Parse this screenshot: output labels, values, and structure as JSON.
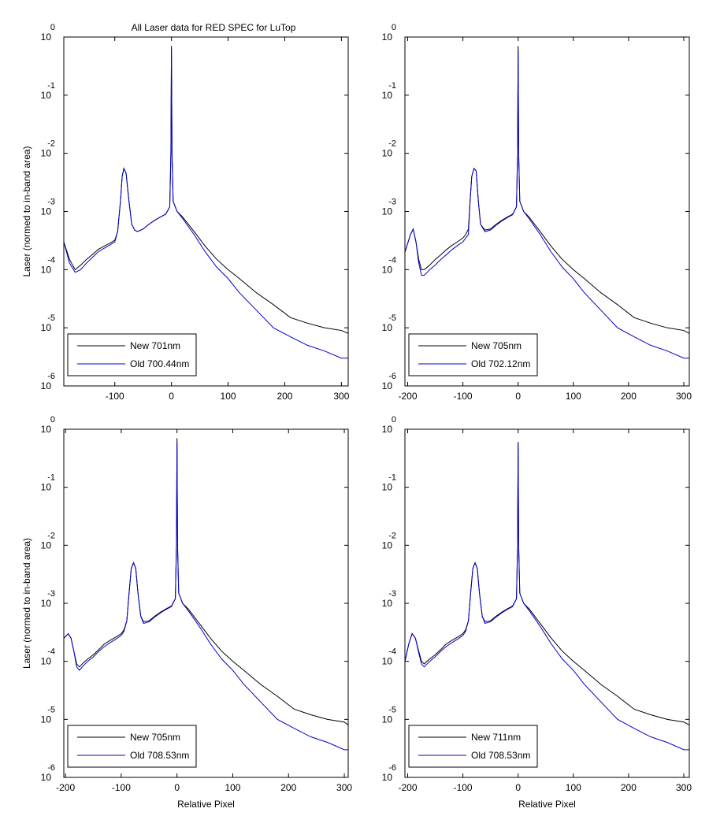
{
  "figure_title": "All Laser data for RED SPEC for LuTop",
  "ylabel": "Laser (normed to in-band area)",
  "xlabel": "Relative Pixel",
  "log_base_label": "10",
  "colors": {
    "new": "#000000",
    "old": "#0000cc",
    "axes": "#000000"
  },
  "chart_data": [
    {
      "type": "line",
      "title": "All Laser data for RED SPEC for LuTop",
      "xlim": [
        -190,
        312
      ],
      "ylim_exp": [
        -6,
        0
      ],
      "xticks": [
        -100,
        0,
        100,
        200,
        300
      ],
      "xtick_labels": [
        "-100",
        "0",
        "100",
        "200",
        "300"
      ],
      "ytick_exps": [
        0,
        -1,
        -2,
        -3,
        -4,
        -5,
        -6
      ],
      "ytick_exp_labels": [
        "0",
        "-1",
        "-2",
        "-3",
        "-4",
        "-5",
        "-6"
      ],
      "ylabel": "Laser (normed to in-band area)",
      "xlabel": "",
      "yscale": "log",
      "legend_position": "bottom-left",
      "series": [
        {
          "name": "New 701nm",
          "color": "#000000",
          "x": [
            -190,
            -180,
            -170,
            -160,
            -150,
            -140,
            -130,
            -120,
            -110,
            -100,
            -95,
            -90,
            -87,
            -84,
            -80,
            -75,
            -70,
            -65,
            -60,
            -50,
            -40,
            -30,
            -20,
            -10,
            -3,
            -1,
            0,
            1,
            3,
            10,
            20,
            40,
            60,
            80,
            100,
            120,
            150,
            180,
            210,
            240,
            270,
            300,
            312
          ],
          "y": [
            0.0003,
            0.00015,
            0.0001,
            0.00012,
            0.00015,
            0.00018,
            0.00022,
            0.00025,
            0.00028,
            0.00032,
            0.00045,
            0.0015,
            0.004,
            0.0055,
            0.0045,
            0.0015,
            0.0006,
            0.00048,
            0.00045,
            0.0005,
            0.0006,
            0.0007,
            0.0008,
            0.0009,
            0.0012,
            0.01,
            0.7,
            0.01,
            0.0015,
            0.001,
            0.0008,
            0.00045,
            0.00025,
            0.00015,
            0.0001,
            7e-05,
            4e-05,
            2.5e-05,
            1.5e-05,
            1.2e-05,
            1e-05,
            9e-06,
            8e-06
          ]
        },
        {
          "name": "Old 700.44nm",
          "color": "#0000cc",
          "x": [
            -190,
            -180,
            -170,
            -160,
            -150,
            -140,
            -130,
            -120,
            -110,
            -100,
            -95,
            -90,
            -87,
            -84,
            -80,
            -75,
            -70,
            -65,
            -60,
            -50,
            -40,
            -30,
            -20,
            -10,
            -3,
            -1,
            0,
            1,
            3,
            10,
            20,
            40,
            60,
            80,
            100,
            120,
            150,
            180,
            210,
            240,
            270,
            300,
            312
          ],
          "y": [
            0.0003,
            0.00013,
            9e-05,
            0.0001,
            0.00013,
            0.00016,
            0.0002,
            0.00023,
            0.00026,
            0.0003,
            0.00045,
            0.0015,
            0.004,
            0.0055,
            0.0045,
            0.0015,
            0.0006,
            0.00048,
            0.00045,
            0.0005,
            0.0006,
            0.0007,
            0.0008,
            0.0009,
            0.0012,
            0.01,
            0.65,
            0.01,
            0.0015,
            0.001,
            0.00075,
            0.0004,
            0.0002,
            0.00011,
            7e-05,
            4e-05,
            2e-05,
            1e-05,
            7e-06,
            5e-06,
            4e-06,
            3e-06,
            3e-06
          ]
        }
      ]
    },
    {
      "type": "line",
      "title": "",
      "xlim": [
        -205,
        310
      ],
      "ylim_exp": [
        -6,
        0
      ],
      "xticks": [
        -200,
        -100,
        0,
        100,
        200,
        300
      ],
      "xtick_labels": [
        "-200",
        "-100",
        "0",
        "100",
        "200",
        "300"
      ],
      "ytick_exps": [
        0,
        -1,
        -2,
        -3,
        -4,
        -5,
        -6
      ],
      "ytick_exp_labels": [
        "0",
        "-1",
        "-2",
        "-3",
        "-4",
        "-5",
        "-6"
      ],
      "ylabel": "",
      "xlabel": "",
      "yscale": "log",
      "legend_position": "bottom-left",
      "series": [
        {
          "name": "New 705nm",
          "color": "#000000",
          "x": [
            -205,
            -195,
            -190,
            -185,
            -180,
            -175,
            -170,
            -160,
            -150,
            -140,
            -130,
            -120,
            -110,
            -100,
            -95,
            -90,
            -87,
            -84,
            -80,
            -76,
            -72,
            -68,
            -60,
            -50,
            -40,
            -30,
            -20,
            -10,
            -3,
            -1,
            0,
            1,
            3,
            10,
            20,
            40,
            60,
            80,
            100,
            120,
            150,
            180,
            210,
            240,
            270,
            300,
            310
          ],
          "y": [
            0.0002,
            0.0004,
            0.0005,
            0.0003,
            0.00015,
            0.0001,
            0.0001,
            0.00012,
            0.00015,
            0.00018,
            0.00022,
            0.00026,
            0.0003,
            0.00035,
            0.0004,
            0.0005,
            0.0015,
            0.004,
            0.0055,
            0.005,
            0.0015,
            0.0006,
            0.00048,
            0.0005,
            0.0006,
            0.0007,
            0.0008,
            0.0009,
            0.0012,
            0.01,
            0.7,
            0.01,
            0.0015,
            0.001,
            0.0008,
            0.00045,
            0.00025,
            0.00015,
            0.0001,
            7e-05,
            4e-05,
            2.5e-05,
            1.5e-05,
            1.2e-05,
            1e-05,
            9e-06,
            8e-06
          ]
        },
        {
          "name": "Old 702.12nm",
          "color": "#0000cc",
          "x": [
            -205,
            -195,
            -190,
            -185,
            -180,
            -175,
            -170,
            -160,
            -150,
            -140,
            -130,
            -120,
            -110,
            -100,
            -95,
            -90,
            -87,
            -84,
            -80,
            -76,
            -72,
            -68,
            -60,
            -50,
            -40,
            -30,
            -20,
            -10,
            -3,
            -1,
            0,
            1,
            3,
            10,
            20,
            40,
            60,
            80,
            100,
            120,
            150,
            180,
            210,
            240,
            270,
            300,
            310
          ],
          "y": [
            0.0002,
            0.0004,
            0.0005,
            0.0003,
            0.00013,
            8e-05,
            8e-05,
            0.0001,
            0.00012,
            0.00015,
            0.00018,
            0.00022,
            0.00026,
            0.0003,
            0.00035,
            0.0004,
            0.0015,
            0.004,
            0.0055,
            0.005,
            0.0015,
            0.0006,
            0.00045,
            0.00048,
            0.00058,
            0.00068,
            0.00078,
            0.00088,
            0.0012,
            0.01,
            0.6,
            0.01,
            0.0015,
            0.001,
            0.00075,
            0.0004,
            0.0002,
            0.00011,
            7e-05,
            4e-05,
            2e-05,
            1e-05,
            7e-06,
            5e-06,
            4e-06,
            3e-06,
            3e-06
          ]
        }
      ]
    },
    {
      "type": "line",
      "title": "",
      "xlim": [
        -203,
        307
      ],
      "ylim_exp": [
        -6,
        0
      ],
      "xticks": [
        -200,
        -100,
        0,
        100,
        200,
        300
      ],
      "xtick_labels": [
        "-200",
        "-100",
        "0",
        "100",
        "200",
        "300"
      ],
      "ytick_exps": [
        0,
        -1,
        -2,
        -3,
        -4,
        -5,
        -6
      ],
      "ytick_exp_labels": [
        "0",
        "-1",
        "-2",
        "-3",
        "-4",
        "-5",
        "-6"
      ],
      "ylabel": "Laser (normed to in-band area)",
      "xlabel": "Relative Pixel",
      "yscale": "log",
      "legend_position": "bottom-left",
      "series": [
        {
          "name": "New 705nm",
          "color": "#000000",
          "x": [
            -203,
            -195,
            -190,
            -185,
            -180,
            -175,
            -170,
            -165,
            -160,
            -150,
            -140,
            -130,
            -120,
            -110,
            -100,
            -95,
            -90,
            -86,
            -82,
            -78,
            -74,
            -70,
            -65,
            -60,
            -50,
            -40,
            -30,
            -20,
            -10,
            -3,
            -1,
            0,
            1,
            3,
            10,
            20,
            40,
            60,
            80,
            100,
            120,
            150,
            180,
            210,
            240,
            270,
            300,
            307
          ],
          "y": [
            0.00025,
            0.0003,
            0.00025,
            0.00015,
            9e-05,
            8e-05,
            9e-05,
            0.0001,
            0.00011,
            0.00013,
            0.00016,
            0.0002,
            0.00023,
            0.00026,
            0.0003,
            0.00035,
            0.0005,
            0.0015,
            0.004,
            0.005,
            0.004,
            0.0015,
            0.0006,
            0.00048,
            0.0005,
            0.0006,
            0.0007,
            0.0008,
            0.0009,
            0.0012,
            0.01,
            0.7,
            0.01,
            0.0015,
            0.001,
            0.0008,
            0.00045,
            0.00025,
            0.00015,
            0.0001,
            7e-05,
            4e-05,
            2.5e-05,
            1.5e-05,
            1.2e-05,
            1e-05,
            9e-06,
            8e-06
          ]
        },
        {
          "name": "Old 708.53nm",
          "color": "#0000cc",
          "x": [
            -203,
            -195,
            -190,
            -185,
            -180,
            -175,
            -170,
            -165,
            -160,
            -150,
            -140,
            -130,
            -120,
            -110,
            -100,
            -95,
            -90,
            -86,
            -82,
            -78,
            -74,
            -70,
            -65,
            -60,
            -50,
            -40,
            -30,
            -20,
            -10,
            -3,
            -1,
            0,
            1,
            3,
            10,
            20,
            40,
            60,
            80,
            100,
            120,
            150,
            180,
            210,
            240,
            270,
            300,
            307
          ],
          "y": [
            0.00025,
            0.0003,
            0.00025,
            0.00015,
            8e-05,
            7e-05,
            8e-05,
            9e-05,
            0.0001,
            0.00012,
            0.00015,
            0.00018,
            0.00021,
            0.00024,
            0.00028,
            0.00033,
            0.0005,
            0.0015,
            0.004,
            0.005,
            0.004,
            0.0015,
            0.0006,
            0.00045,
            0.00048,
            0.00058,
            0.00068,
            0.00078,
            0.00088,
            0.0012,
            0.01,
            0.6,
            0.01,
            0.0015,
            0.001,
            0.00075,
            0.0004,
            0.0002,
            0.00011,
            7e-05,
            4e-05,
            2e-05,
            1e-05,
            7e-06,
            5e-06,
            4e-06,
            3e-06,
            3e-06
          ]
        }
      ]
    },
    {
      "type": "line",
      "title": "",
      "xlim": [
        -205,
        310
      ],
      "ylim_exp": [
        -6,
        0
      ],
      "xticks": [
        -200,
        -100,
        0,
        100,
        200,
        300
      ],
      "xtick_labels": [
        "-200",
        "-100",
        "0",
        "100",
        "200",
        "300"
      ],
      "ytick_exps": [
        0,
        -1,
        -2,
        -3,
        -4,
        -5,
        -6
      ],
      "ytick_exp_labels": [
        "0",
        "-1",
        "-2",
        "-3",
        "-4",
        "-5",
        "-6"
      ],
      "ylabel": "",
      "xlabel": "Relative Pixel",
      "yscale": "log",
      "legend_position": "bottom-left",
      "series": [
        {
          "name": "New 711nm",
          "color": "#000000",
          "x": [
            -205,
            -198,
            -192,
            -186,
            -180,
            -175,
            -170,
            -165,
            -160,
            -150,
            -140,
            -130,
            -120,
            -110,
            -100,
            -95,
            -90,
            -86,
            -82,
            -78,
            -74,
            -70,
            -65,
            -60,
            -50,
            -40,
            -30,
            -20,
            -10,
            -3,
            -1,
            0,
            1,
            3,
            10,
            20,
            40,
            60,
            80,
            100,
            120,
            150,
            180,
            210,
            240,
            270,
            300,
            310
          ],
          "y": [
            0.0001,
            0.0002,
            0.0003,
            0.00025,
            0.00015,
            0.0001,
            9e-05,
            0.0001,
            0.00011,
            0.00013,
            0.00016,
            0.0002,
            0.00023,
            0.00026,
            0.0003,
            0.00035,
            0.0005,
            0.0015,
            0.004,
            0.005,
            0.004,
            0.0015,
            0.0006,
            0.00048,
            0.0005,
            0.0006,
            0.0007,
            0.0008,
            0.0009,
            0.0012,
            0.01,
            0.6,
            0.01,
            0.0015,
            0.001,
            0.0008,
            0.00045,
            0.00025,
            0.00015,
            0.0001,
            7e-05,
            4e-05,
            2.5e-05,
            1.5e-05,
            1.2e-05,
            1e-05,
            9e-06,
            8e-06
          ]
        },
        {
          "name": "Old 708.53nm",
          "color": "#0000cc",
          "x": [
            -205,
            -198,
            -192,
            -186,
            -180,
            -175,
            -170,
            -165,
            -160,
            -150,
            -140,
            -130,
            -120,
            -110,
            -100,
            -95,
            -90,
            -86,
            -82,
            -78,
            -74,
            -70,
            -65,
            -60,
            -50,
            -40,
            -30,
            -20,
            -10,
            -3,
            -1,
            0,
            1,
            3,
            10,
            20,
            40,
            60,
            80,
            100,
            120,
            150,
            180,
            210,
            240,
            270,
            300,
            310
          ],
          "y": [
            0.0001,
            0.0002,
            0.0003,
            0.00025,
            0.00014,
            9e-05,
            8e-05,
            9e-05,
            0.0001,
            0.00012,
            0.00015,
            0.00018,
            0.00021,
            0.00024,
            0.00028,
            0.00033,
            0.0005,
            0.0015,
            0.004,
            0.005,
            0.004,
            0.0015,
            0.0006,
            0.00045,
            0.00048,
            0.00058,
            0.00068,
            0.00078,
            0.00088,
            0.0012,
            0.01,
            0.6,
            0.01,
            0.0015,
            0.001,
            0.00075,
            0.0004,
            0.0002,
            0.00011,
            7e-05,
            4e-05,
            2e-05,
            1e-05,
            7e-06,
            5e-06,
            4e-06,
            3e-06,
            3e-06
          ]
        }
      ]
    }
  ]
}
